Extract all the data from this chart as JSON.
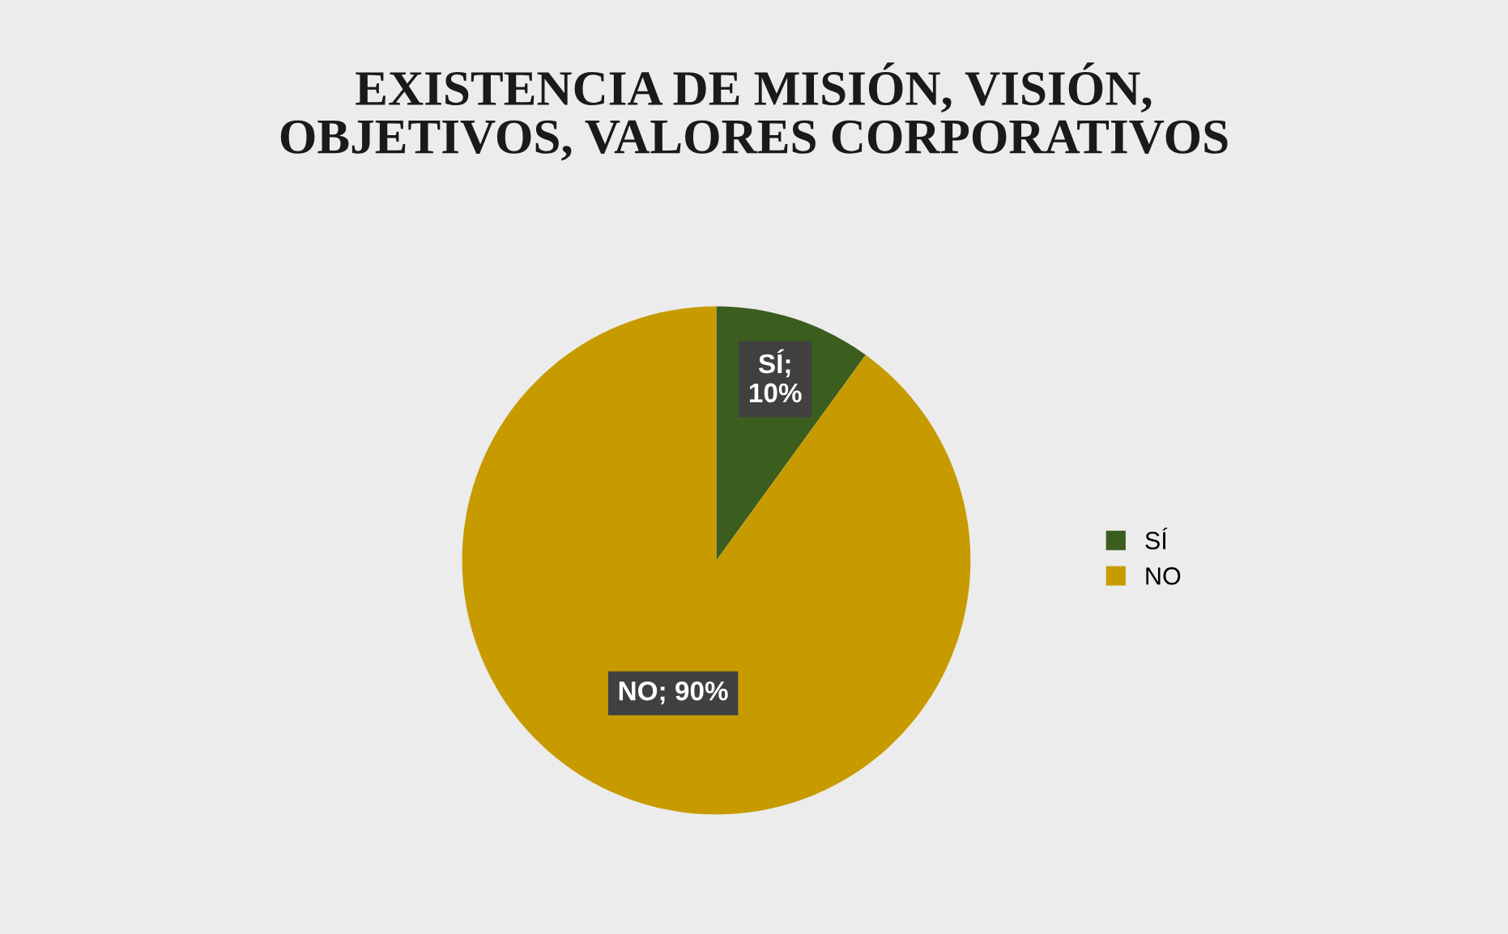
{
  "chart_data": {
    "type": "pie",
    "title": "EXISTENCIA DE MISIÓN, VISIÓN,\nOBJETIVOS, VALORES CORPORATIVOS",
    "categories": [
      "SÍ",
      "NO"
    ],
    "values": [
      10,
      90
    ],
    "colors": [
      "#3b5e1f",
      "#c79b00"
    ],
    "value_labels": [
      "SÍ;\n10%",
      "NO; 90%"
    ],
    "legend": "right"
  }
}
